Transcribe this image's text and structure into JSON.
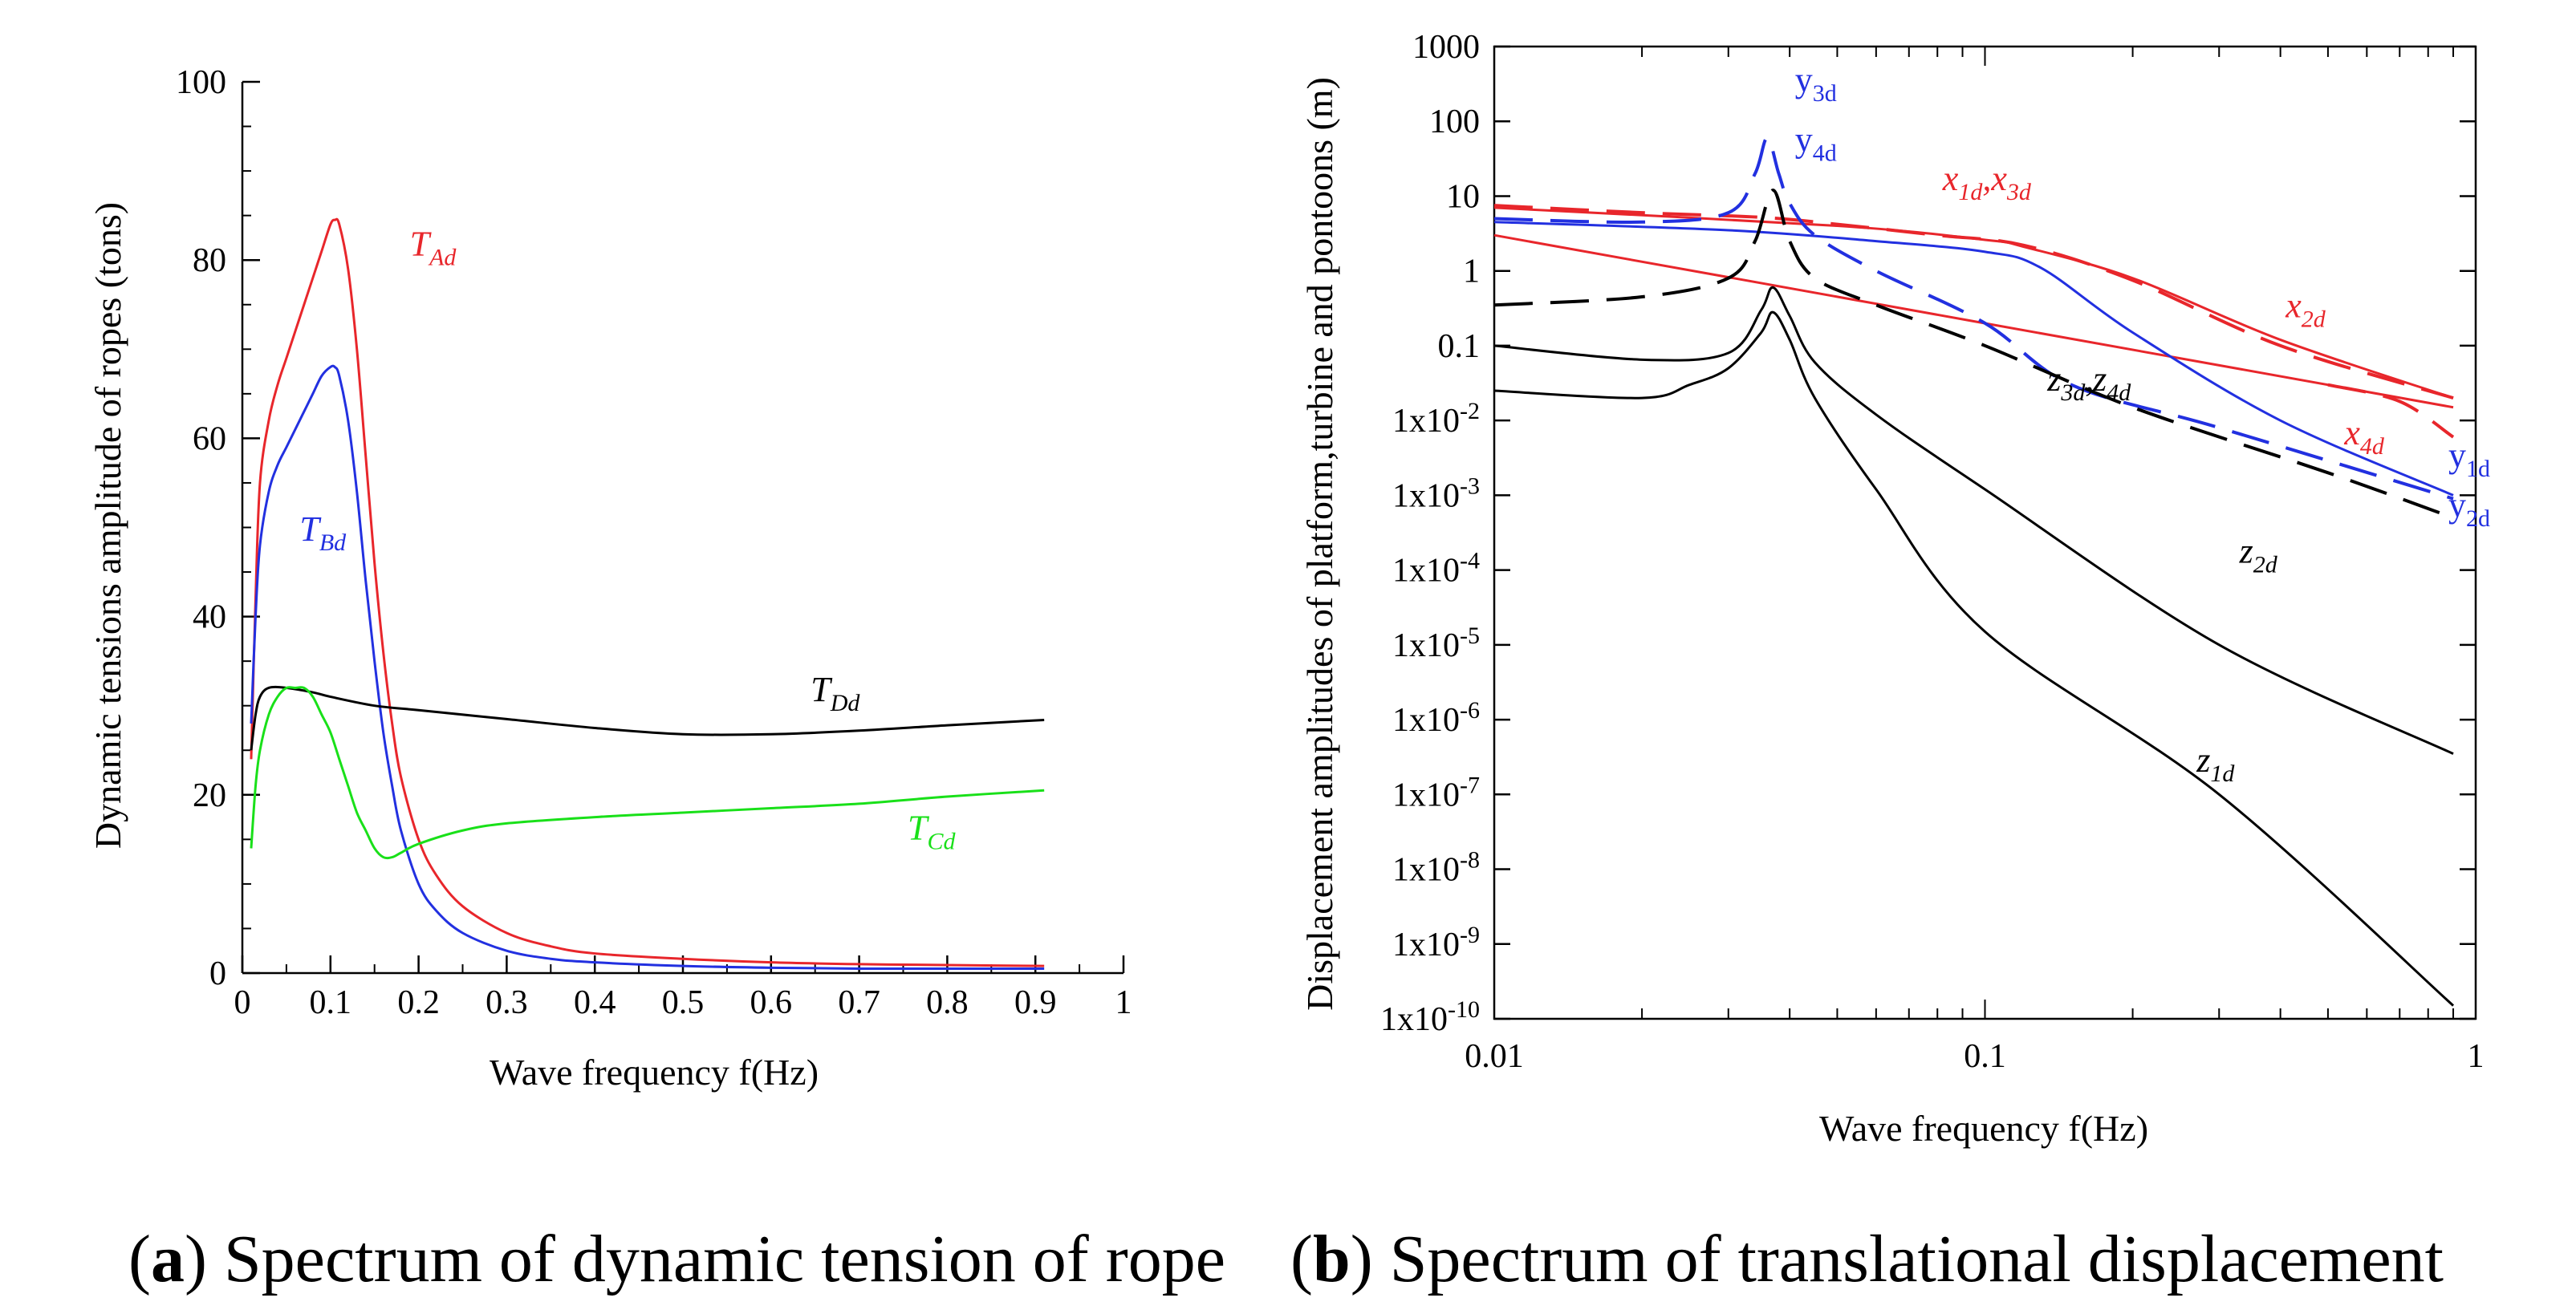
{
  "figure": {
    "caption_a_letter": "a",
    "caption_a_text": " Spectrum of dynamic tension of rope",
    "caption_b_letter": "b",
    "caption_b_text": " Spectrum of translational displacement"
  },
  "chart_data": [
    {
      "id": "a",
      "type": "line",
      "title": "",
      "xlabel": "Wave frequency f(Hz)",
      "ylabel": "Dynamic tensions amplitude of ropes (tons)",
      "xlim": [
        0,
        1
      ],
      "ylim": [
        0,
        100
      ],
      "x_ticks": [
        0,
        0.1,
        0.2,
        0.3,
        0.4,
        0.5,
        0.6,
        0.7,
        0.8,
        0.9,
        1
      ],
      "x_tick_labels": [
        "0",
        "0.1",
        "0.2",
        "0.3",
        "0.4",
        "0.5",
        "0.6",
        "0.7",
        "0.8",
        "0.9",
        "1"
      ],
      "y_ticks": [
        0,
        20,
        40,
        60,
        80,
        100
      ],
      "y_tick_labels": [
        "0",
        "20",
        "40",
        "60",
        "80",
        "100"
      ],
      "grid": false,
      "series": [
        {
          "name": "T_Ad",
          "main": "T",
          "sub": "Ad",
          "color": "#e8262b",
          "x": [
            0.01,
            0.015,
            0.02,
            0.03,
            0.04,
            0.05,
            0.06,
            0.07,
            0.08,
            0.09,
            0.1,
            0.105,
            0.11,
            0.12,
            0.13,
            0.14,
            0.15,
            0.16,
            0.17,
            0.18,
            0.2,
            0.22,
            0.25,
            0.3,
            0.35,
            0.4,
            0.5,
            0.6,
            0.7,
            0.8,
            0.91
          ],
          "y": [
            24,
            42,
            55,
            62,
            66,
            69,
            72,
            75,
            78,
            81,
            84,
            84.5,
            84,
            79,
            70,
            58,
            46,
            36,
            28,
            22,
            15,
            11,
            7.5,
            4.5,
            3,
            2.2,
            1.6,
            1.2,
            1,
            0.9,
            0.8
          ]
        },
        {
          "name": "T_Bd",
          "main": "T",
          "sub": "Bd",
          "color": "#2230e0",
          "x": [
            0.01,
            0.015,
            0.02,
            0.03,
            0.04,
            0.05,
            0.06,
            0.07,
            0.08,
            0.09,
            0.1,
            0.105,
            0.11,
            0.12,
            0.13,
            0.14,
            0.15,
            0.16,
            0.17,
            0.18,
            0.2,
            0.22,
            0.25,
            0.3,
            0.35,
            0.4,
            0.5,
            0.6,
            0.7,
            0.8,
            0.91
          ],
          "y": [
            28,
            40,
            48,
            54,
            57,
            59,
            61,
            63,
            65,
            67,
            68,
            68,
            67,
            62,
            54,
            44,
            35,
            27,
            21,
            16,
            10,
            7,
            4.5,
            2.5,
            1.6,
            1.2,
            0.8,
            0.6,
            0.5,
            0.5,
            0.5
          ]
        },
        {
          "name": "T_Dd",
          "main": "T",
          "sub": "Dd",
          "color": "#000000",
          "x": [
            0.01,
            0.015,
            0.02,
            0.03,
            0.05,
            0.08,
            0.1,
            0.15,
            0.2,
            0.3,
            0.4,
            0.5,
            0.6,
            0.7,
            0.8,
            0.91
          ],
          "y": [
            25,
            29,
            31,
            32,
            32,
            31.5,
            31,
            30,
            29.5,
            28.5,
            27.5,
            26.8,
            26.8,
            27.2,
            27.8,
            28.4
          ]
        },
        {
          "name": "T_Cd",
          "main": "T",
          "sub": "Cd",
          "color": "#19e019",
          "x": [
            0.01,
            0.015,
            0.02,
            0.03,
            0.04,
            0.05,
            0.06,
            0.07,
            0.08,
            0.09,
            0.1,
            0.11,
            0.12,
            0.13,
            0.14,
            0.15,
            0.16,
            0.17,
            0.18,
            0.2,
            0.25,
            0.3,
            0.4,
            0.5,
            0.6,
            0.7,
            0.8,
            0.91
          ],
          "y": [
            14,
            21,
            25,
            29,
            31,
            32,
            32,
            32,
            31,
            29,
            27,
            24,
            21,
            18,
            16,
            14,
            13,
            13,
            13.5,
            14.5,
            16,
            16.8,
            17.5,
            18,
            18.5,
            19,
            19.8,
            20.5
          ]
        }
      ],
      "annotations": [
        {
          "series": "T_Ad",
          "main": "T",
          "sub": "Ad",
          "x": 0.19,
          "y": 80.5,
          "color": "#e8262b"
        },
        {
          "series": "T_Bd",
          "main": "T",
          "sub": "Bd",
          "x": 0.065,
          "y": 48.5,
          "color": "#2230e0"
        },
        {
          "series": "T_Dd",
          "main": "T",
          "sub": "Dd",
          "x": 0.645,
          "y": 30.5,
          "color": "#000000"
        },
        {
          "series": "T_Cd",
          "main": "T",
          "sub": "Cd",
          "x": 0.755,
          "y": 15,
          "color": "#19e019"
        }
      ]
    },
    {
      "id": "b",
      "type": "line",
      "title": "",
      "xlabel": "Wave frequency f(Hz)",
      "ylabel": "Displacement amplitudes of platform,turbine and pontoons (m)",
      "xscale": "log",
      "yscale": "log",
      "xlim": [
        0.01,
        1
      ],
      "ylim": [
        1e-10,
        1000
      ],
      "x_ticks": [
        0.01,
        0.1,
        1
      ],
      "x_tick_labels": [
        "0.01",
        "0.1",
        "1"
      ],
      "y_ticks": [
        1e-10,
        1e-09,
        1e-08,
        1e-07,
        1e-06,
        1e-05,
        0.0001,
        0.001,
        0.01,
        0.1,
        1,
        10,
        100,
        1000
      ],
      "y_tick_labels": [
        {
          "base": "1x10",
          "exp": "-10"
        },
        {
          "base": "1x10",
          "exp": "-9"
        },
        {
          "base": "1x10",
          "exp": "-8"
        },
        {
          "base": "1x10",
          "exp": "-7"
        },
        {
          "base": "1x10",
          "exp": "-6"
        },
        {
          "base": "1x10",
          "exp": "-5"
        },
        {
          "base": "1x10",
          "exp": "-4"
        },
        {
          "base": "1x10",
          "exp": "-3"
        },
        {
          "base": "1x10",
          "exp": "-2"
        },
        {
          "base": "0.1",
          "exp": ""
        },
        {
          "base": "1",
          "exp": ""
        },
        {
          "base": "10",
          "exp": ""
        },
        {
          "base": "100",
          "exp": ""
        },
        {
          "base": "1000",
          "exp": ""
        }
      ],
      "grid": false,
      "series": [
        {
          "name": "x1d_x3d",
          "color": "#e8262b",
          "dash": "long",
          "x": [
            0.01,
            0.02,
            0.035,
            0.05,
            0.08,
            0.12,
            0.2,
            0.4,
            0.9
          ],
          "y": [
            7.5,
            6,
            5.2,
            4.2,
            3,
            2.2,
            0.75,
            0.1,
            0.02
          ]
        },
        {
          "name": "x1d_x3d_solid",
          "color": "#e8262b",
          "dash": "solid",
          "x": [
            0.01,
            0.05,
            0.1,
            0.12,
            0.2,
            0.4,
            0.9
          ],
          "y": [
            7,
            4,
            2.6,
            2.1,
            0.8,
            0.12,
            0.02
          ]
        },
        {
          "name": "x2d",
          "color": "#e8262b",
          "dash": "solid",
          "x": [
            0.01,
            0.9
          ],
          "y": [
            3,
            0.015
          ]
        },
        {
          "name": "x4d",
          "color": "#e8262b",
          "dash": "long",
          "x": [
            0.5,
            0.7,
            0.9
          ],
          "y": [
            0.03,
            0.018,
            0.006
          ]
        },
        {
          "name": "y1d",
          "color": "#2230e0",
          "dash": "solid",
          "x": [
            0.01,
            0.03,
            0.06,
            0.1,
            0.13,
            0.2,
            0.4,
            0.9
          ],
          "y": [
            4.5,
            3.5,
            2.5,
            1.8,
            1.1,
            0.15,
            0.01,
            0.001
          ]
        },
        {
          "name": "y3d_y4d",
          "color": "#2230e0",
          "dash": "long",
          "x": [
            0.01,
            0.02,
            0.03,
            0.034,
            0.036,
            0.038,
            0.04,
            0.045,
            0.06,
            0.1,
            0.15,
            0.3,
            0.9
          ],
          "y": [
            5,
            4.5,
            6,
            20,
            60,
            20,
            8,
            3,
            1,
            0.2,
            0.03,
            0.008,
            0.0009
          ]
        },
        {
          "name": "z3d_z4d",
          "color": "#000000",
          "dash": "long",
          "x": [
            0.01,
            0.02,
            0.03,
            0.034,
            0.037,
            0.04,
            0.045,
            0.06,
            0.1,
            0.2,
            0.5,
            0.9
          ],
          "y": [
            0.35,
            0.45,
            0.8,
            2.5,
            12,
            2.5,
            0.8,
            0.35,
            0.1,
            0.015,
            0.002,
            0.0005
          ]
        },
        {
          "name": "z2d",
          "color": "#000000",
          "dash": "solid",
          "x": [
            0.01,
            0.02,
            0.03,
            0.035,
            0.037,
            0.04,
            0.045,
            0.06,
            0.1,
            0.3,
            0.9
          ],
          "y": [
            0.1,
            0.065,
            0.08,
            0.3,
            0.6,
            0.25,
            0.06,
            0.012,
            0.0012,
            1e-05,
            3.5e-07
          ]
        },
        {
          "name": "z1d",
          "color": "#000000",
          "dash": "solid",
          "x": [
            0.01,
            0.02,
            0.025,
            0.03,
            0.035,
            0.037,
            0.04,
            0.045,
            0.06,
            0.1,
            0.3,
            0.9
          ],
          "y": [
            0.025,
            0.02,
            0.03,
            0.05,
            0.15,
            0.28,
            0.12,
            0.02,
            0.0012,
            1.5e-05,
            1e-07,
            1.5e-10
          ]
        }
      ],
      "annotations": [
        {
          "main": "y",
          "sub": "3d",
          "x": 0.041,
          "y": 250,
          "color": "#2230e0",
          "italic": false
        },
        {
          "main": "y",
          "sub": "4d",
          "x": 0.041,
          "y": 40,
          "color": "#2230e0",
          "italic": false
        },
        {
          "main": "x",
          "sub": "1d",
          "x": 0.082,
          "y": 12,
          "color": "#e8262b",
          "italic": true,
          "comma": true
        },
        {
          "main": "x",
          "sub": "3d",
          "x": 0.103,
          "y": 12,
          "color": "#e8262b",
          "italic": true
        },
        {
          "main": "x",
          "sub": "2d",
          "x": 0.41,
          "y": 0.24,
          "color": "#e8262b",
          "italic": true
        },
        {
          "main": "x",
          "sub": "4d",
          "x": 0.54,
          "y": 0.0048,
          "color": "#e8262b",
          "italic": true
        },
        {
          "main": "y",
          "sub": "1d",
          "x": 0.88,
          "y": 0.0024,
          "color": "#2230e0",
          "italic": false
        },
        {
          "main": "y",
          "sub": "2d",
          "x": 0.88,
          "y": 0.00052,
          "color": "#2230e0",
          "italic": false
        },
        {
          "main": "z",
          "sub": "3d",
          "x": 0.134,
          "y": 0.025,
          "color": "#000000",
          "italic": true,
          "comma": true
        },
        {
          "main": "z",
          "sub": "4d",
          "x": 0.166,
          "y": 0.025,
          "color": "#000000",
          "italic": true
        },
        {
          "main": "z",
          "sub": "2d",
          "x": 0.33,
          "y": 0.000125,
          "color": "#000000",
          "italic": true
        },
        {
          "main": "z",
          "sub": "1d",
          "x": 0.27,
          "y": 2e-07,
          "color": "#000000",
          "italic": true
        }
      ]
    }
  ]
}
